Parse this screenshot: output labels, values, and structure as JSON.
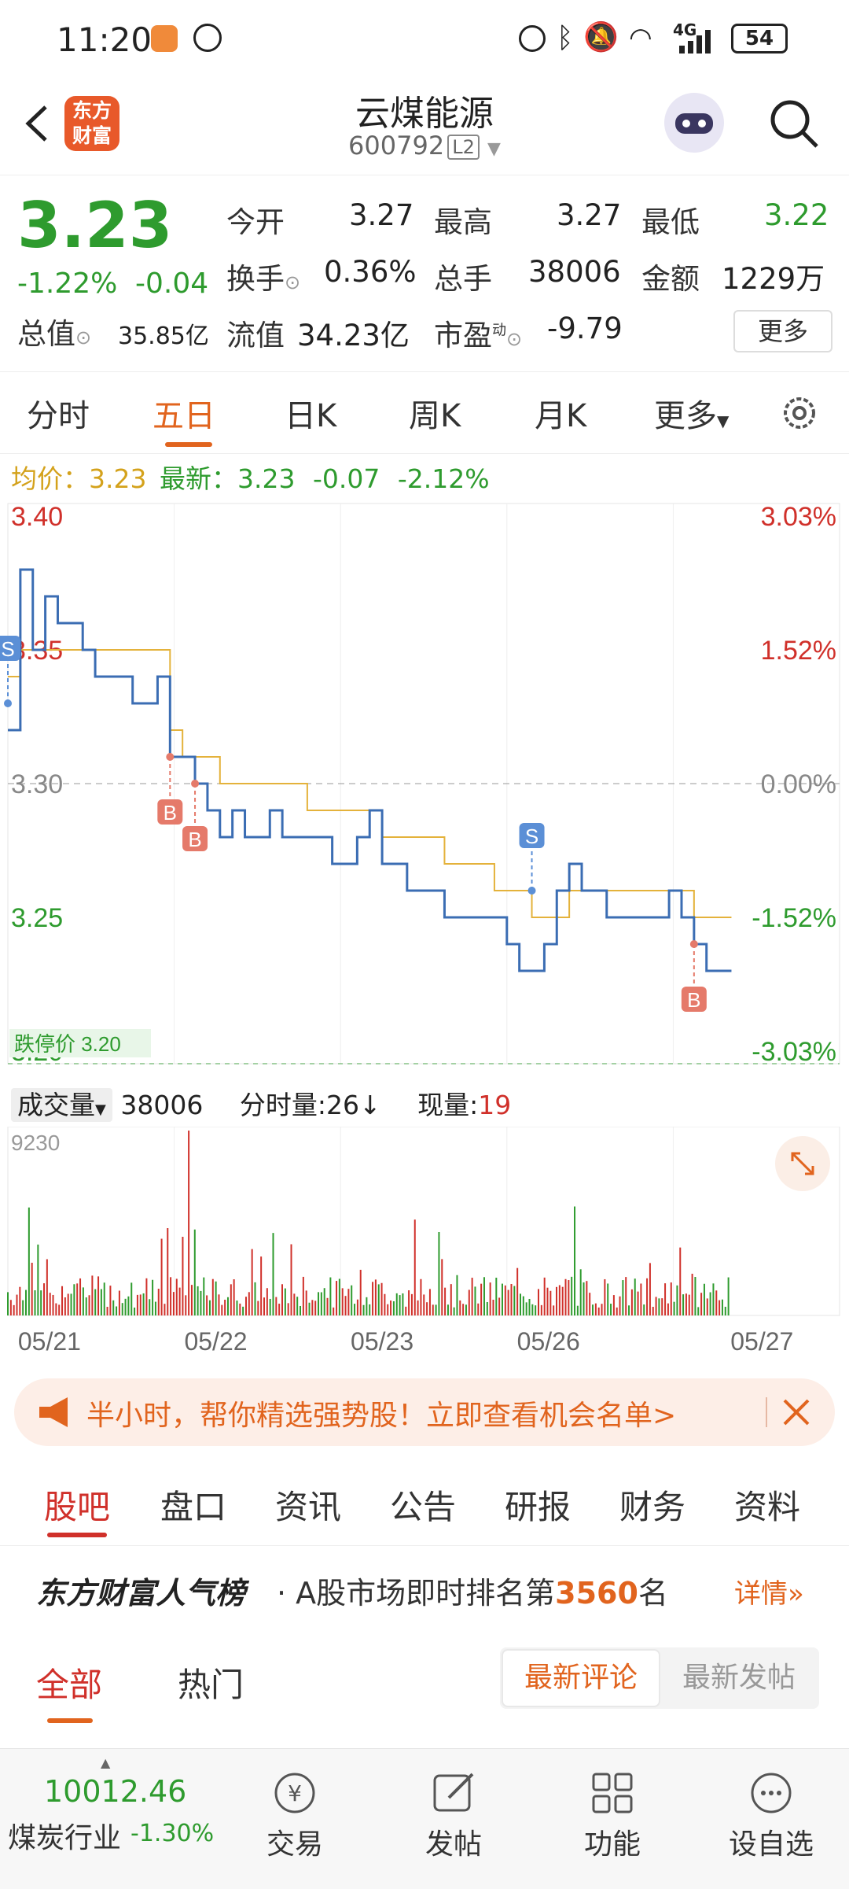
{
  "status_bar": {
    "time": "11:20",
    "battery": "54",
    "network": "4G"
  },
  "header": {
    "logo_text_line1": "东方",
    "logo_text_line2": "财富",
    "stock_name": "云煤能源",
    "stock_code": "600792",
    "level_badge": "L2"
  },
  "quote": {
    "price": "3.23",
    "change_pct": "-1.22%",
    "change": "-0.04",
    "open_label": "今开",
    "open": "3.27",
    "high_label": "最高",
    "high": "3.27",
    "low_label": "最低",
    "low": "3.22",
    "turnover_label": "换手",
    "turnover": "0.36%",
    "volume_label": "总手",
    "volume": "38006",
    "amount_label": "金额",
    "amount": "1229万",
    "mktcap_label": "总值",
    "mktcap": "35.85亿",
    "float_label": "流值",
    "float_cap": "34.23亿",
    "pe_label": "市盈",
    "pe_sup": "动",
    "pe": "-9.79",
    "more_button": "更多"
  },
  "period_tabs": [
    {
      "label": "分时",
      "active": false
    },
    {
      "label": "五日",
      "active": true
    },
    {
      "label": "日K",
      "active": false
    },
    {
      "label": "周K",
      "active": false
    },
    {
      "label": "月K",
      "active": false
    },
    {
      "label": "更多",
      "active": false
    }
  ],
  "chart_info": {
    "avg_label": "均价：",
    "avg_value": "3.23",
    "latest_label": "最新：",
    "latest_value": "3.23",
    "latest_change": "-0.07",
    "latest_change_pct": "-2.12%"
  },
  "chart_data": {
    "type": "line",
    "x_labels": [
      "05/21",
      "05/22",
      "05/23",
      "05/26",
      "05/27"
    ],
    "y_ticks_left": [
      "3.40",
      "3.35",
      "3.30",
      "3.25",
      "3.20"
    ],
    "y_ticks_right": [
      "3.03%",
      "1.52%",
      "0.00%",
      "-1.52%",
      "-3.03%"
    ],
    "ylim": [
      3.2,
      3.4
    ],
    "prev_close": 3.3,
    "limit_label": "跌停价 3.20",
    "series": [
      {
        "name": "最新",
        "color": "#3b6db3",
        "values": [
          3.32,
          3.38,
          3.35,
          3.37,
          3.36,
          3.36,
          3.35,
          3.34,
          3.34,
          3.34,
          3.33,
          3.33,
          3.34,
          3.31,
          3.31,
          3.3,
          3.29,
          3.28,
          3.29,
          3.28,
          3.28,
          3.29,
          3.28,
          3.28,
          3.28,
          3.28,
          3.27,
          3.27,
          3.28,
          3.29,
          3.27,
          3.27,
          3.26,
          3.26,
          3.26,
          3.25,
          3.25,
          3.25,
          3.25,
          3.25,
          3.24,
          3.23,
          3.23,
          3.24,
          3.26,
          3.27,
          3.26,
          3.26,
          3.25,
          3.25,
          3.25,
          3.25,
          3.25,
          3.26,
          3.25,
          3.24,
          3.23,
          3.23,
          3.23
        ]
      },
      {
        "name": "均价",
        "color": "#e4b23b",
        "values": [
          3.34,
          3.35,
          3.35,
          3.35,
          3.35,
          3.35,
          3.35,
          3.35,
          3.35,
          3.35,
          3.35,
          3.35,
          3.35,
          3.32,
          3.31,
          3.31,
          3.31,
          3.3,
          3.3,
          3.3,
          3.3,
          3.3,
          3.3,
          3.3,
          3.29,
          3.29,
          3.29,
          3.29,
          3.29,
          3.29,
          3.28,
          3.28,
          3.28,
          3.28,
          3.28,
          3.27,
          3.27,
          3.27,
          3.27,
          3.26,
          3.26,
          3.26,
          3.25,
          3.25,
          3.25,
          3.26,
          3.26,
          3.26,
          3.26,
          3.26,
          3.26,
          3.26,
          3.26,
          3.26,
          3.26,
          3.25,
          3.25,
          3.25,
          3.25
        ]
      }
    ],
    "markers": [
      {
        "label": "S",
        "x_index": 0,
        "value": 3.33
      },
      {
        "label": "B",
        "x_index": 13,
        "value": 3.31
      },
      {
        "label": "B",
        "x_index": 15,
        "value": 3.3
      },
      {
        "label": "S",
        "x_index": 42,
        "value": 3.26
      },
      {
        "label": "B",
        "x_index": 55,
        "value": 3.24
      }
    ],
    "volume_label": "成交量",
    "volume_total": "38006",
    "volume_tick_label": "分时量:26↓",
    "current_volume_label": "现量:",
    "current_volume": "19",
    "volume_max": "9230"
  },
  "promo": {
    "text": "半小时，帮你精选强势股！立即查看机会名单>"
  },
  "section_tabs": [
    {
      "label": "股吧",
      "active": true
    },
    {
      "label": "盘口",
      "active": false
    },
    {
      "label": "资讯",
      "active": false
    },
    {
      "label": "公告",
      "active": false
    },
    {
      "label": "研报",
      "active": false
    },
    {
      "label": "财务",
      "active": false
    },
    {
      "label": "资料",
      "active": false
    }
  ],
  "rank": {
    "brand": "东方财富人气榜",
    "text": "· A股市场即时排名第",
    "rank_value": "3560",
    "suffix": "名",
    "detail": "详情"
  },
  "sub_tabs": {
    "all": "全部",
    "hot": "热门",
    "latest_comment": "最新评论",
    "latest_post": "最新发帖"
  },
  "bottom_bar": {
    "index_value": "10012.46",
    "index_name": "煤炭行业",
    "index_change": "-1.30%",
    "items": [
      "交易",
      "发帖",
      "功能",
      "设自选"
    ]
  }
}
